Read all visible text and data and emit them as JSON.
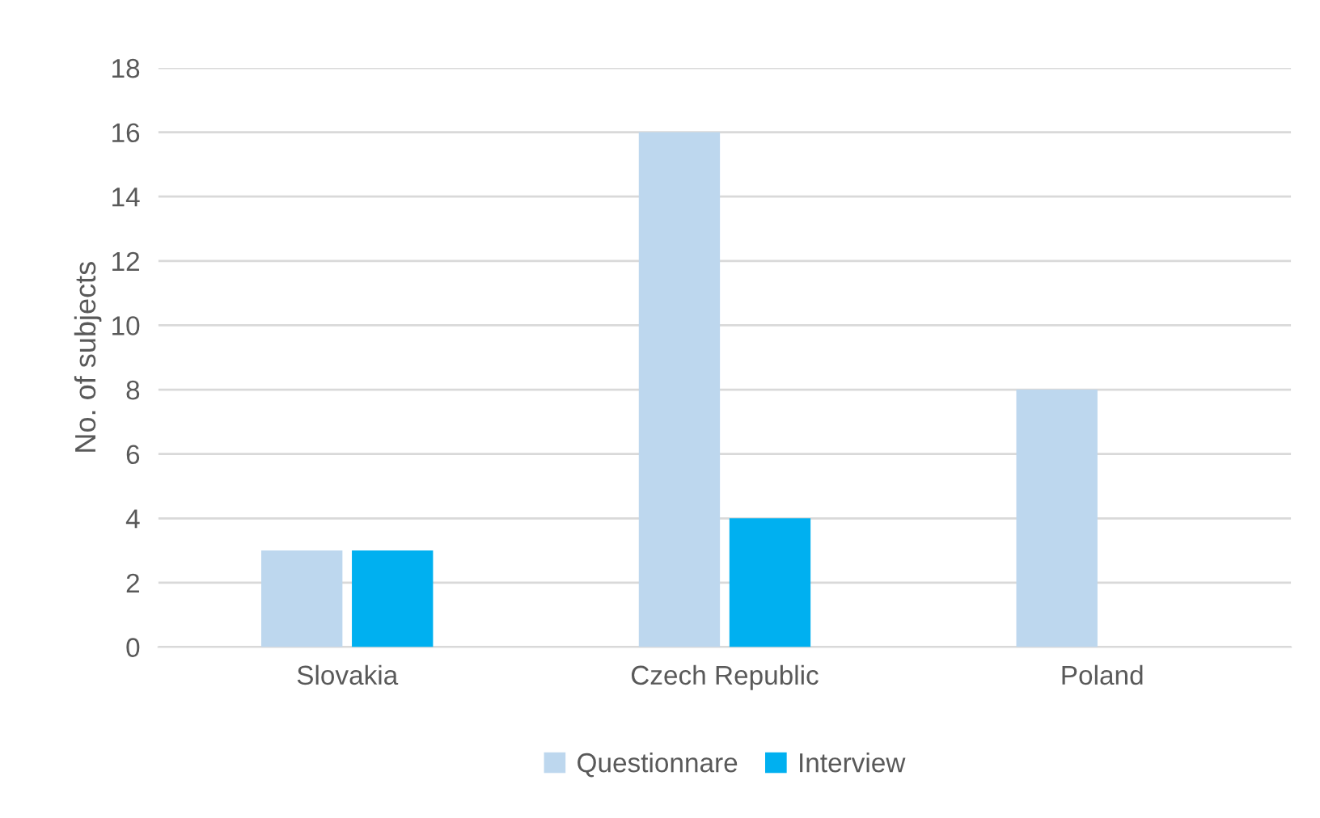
{
  "chart_data": {
    "type": "bar",
    "ylabel": "No. of subjects",
    "categories": [
      "Slovakia",
      "Czech Republic",
      "Poland"
    ],
    "series": [
      {
        "name": "Questionnare",
        "color": "#bdd7ee",
        "values": [
          3,
          16,
          8
        ]
      },
      {
        "name": "Interview",
        "color": "#00b0f0",
        "values": [
          3,
          4,
          0
        ]
      }
    ],
    "ylim": [
      0,
      18
    ],
    "yticks": [
      0,
      2,
      4,
      6,
      8,
      10,
      12,
      14,
      16,
      18
    ],
    "grid": "y",
    "legend": "bottom"
  }
}
